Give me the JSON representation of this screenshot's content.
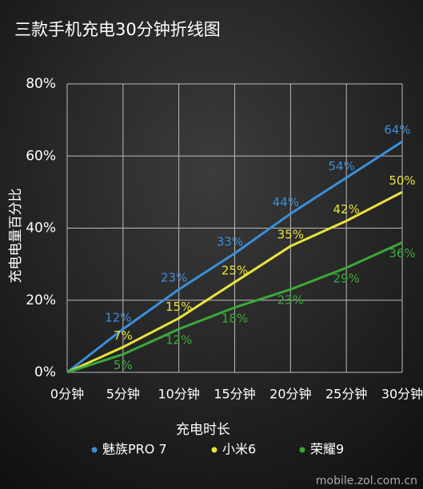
{
  "chart_data": {
    "type": "line",
    "title": "三款手机充电30分钟折线图",
    "x_label": "充电时长",
    "y_label": "充电电量百分比",
    "categories": [
      "0分钟",
      "5分钟",
      "10分钟",
      "15分钟",
      "20分钟",
      "25分钟",
      "30分钟"
    ],
    "series": [
      {
        "name": "魅族PRO 7",
        "color": "#3b8fda",
        "values": [
          0,
          12,
          23,
          33,
          44,
          54,
          64
        ],
        "value_labels": [
          null,
          "12%",
          "23%",
          "33%",
          "44%",
          "54%",
          "64%"
        ]
      },
      {
        "name": "小米6",
        "color": "#e9e23f",
        "values": [
          0,
          7,
          15,
          25,
          35,
          42,
          50
        ],
        "value_labels": [
          null,
          "7%",
          "15%",
          "25%",
          "35%",
          "42%",
          "50%"
        ]
      },
      {
        "name": "荣耀9",
        "color": "#3ca83a",
        "values": [
          0,
          5,
          12,
          18,
          23,
          29,
          36
        ],
        "value_labels": [
          null,
          "5%",
          "12%",
          "18%",
          "23%",
          "29%",
          "36%"
        ]
      }
    ],
    "ylim": [
      0,
      80
    ],
    "yticks": [
      {
        "value": 0,
        "label": "0%"
      },
      {
        "value": 20,
        "label": "20%"
      },
      {
        "value": 40,
        "label": "40%"
      },
      {
        "value": 60,
        "label": "60%"
      },
      {
        "value": 80,
        "label": "80%"
      }
    ],
    "grid": true,
    "legend": "bottom",
    "watermark": "mobile.zol.com.cn"
  }
}
